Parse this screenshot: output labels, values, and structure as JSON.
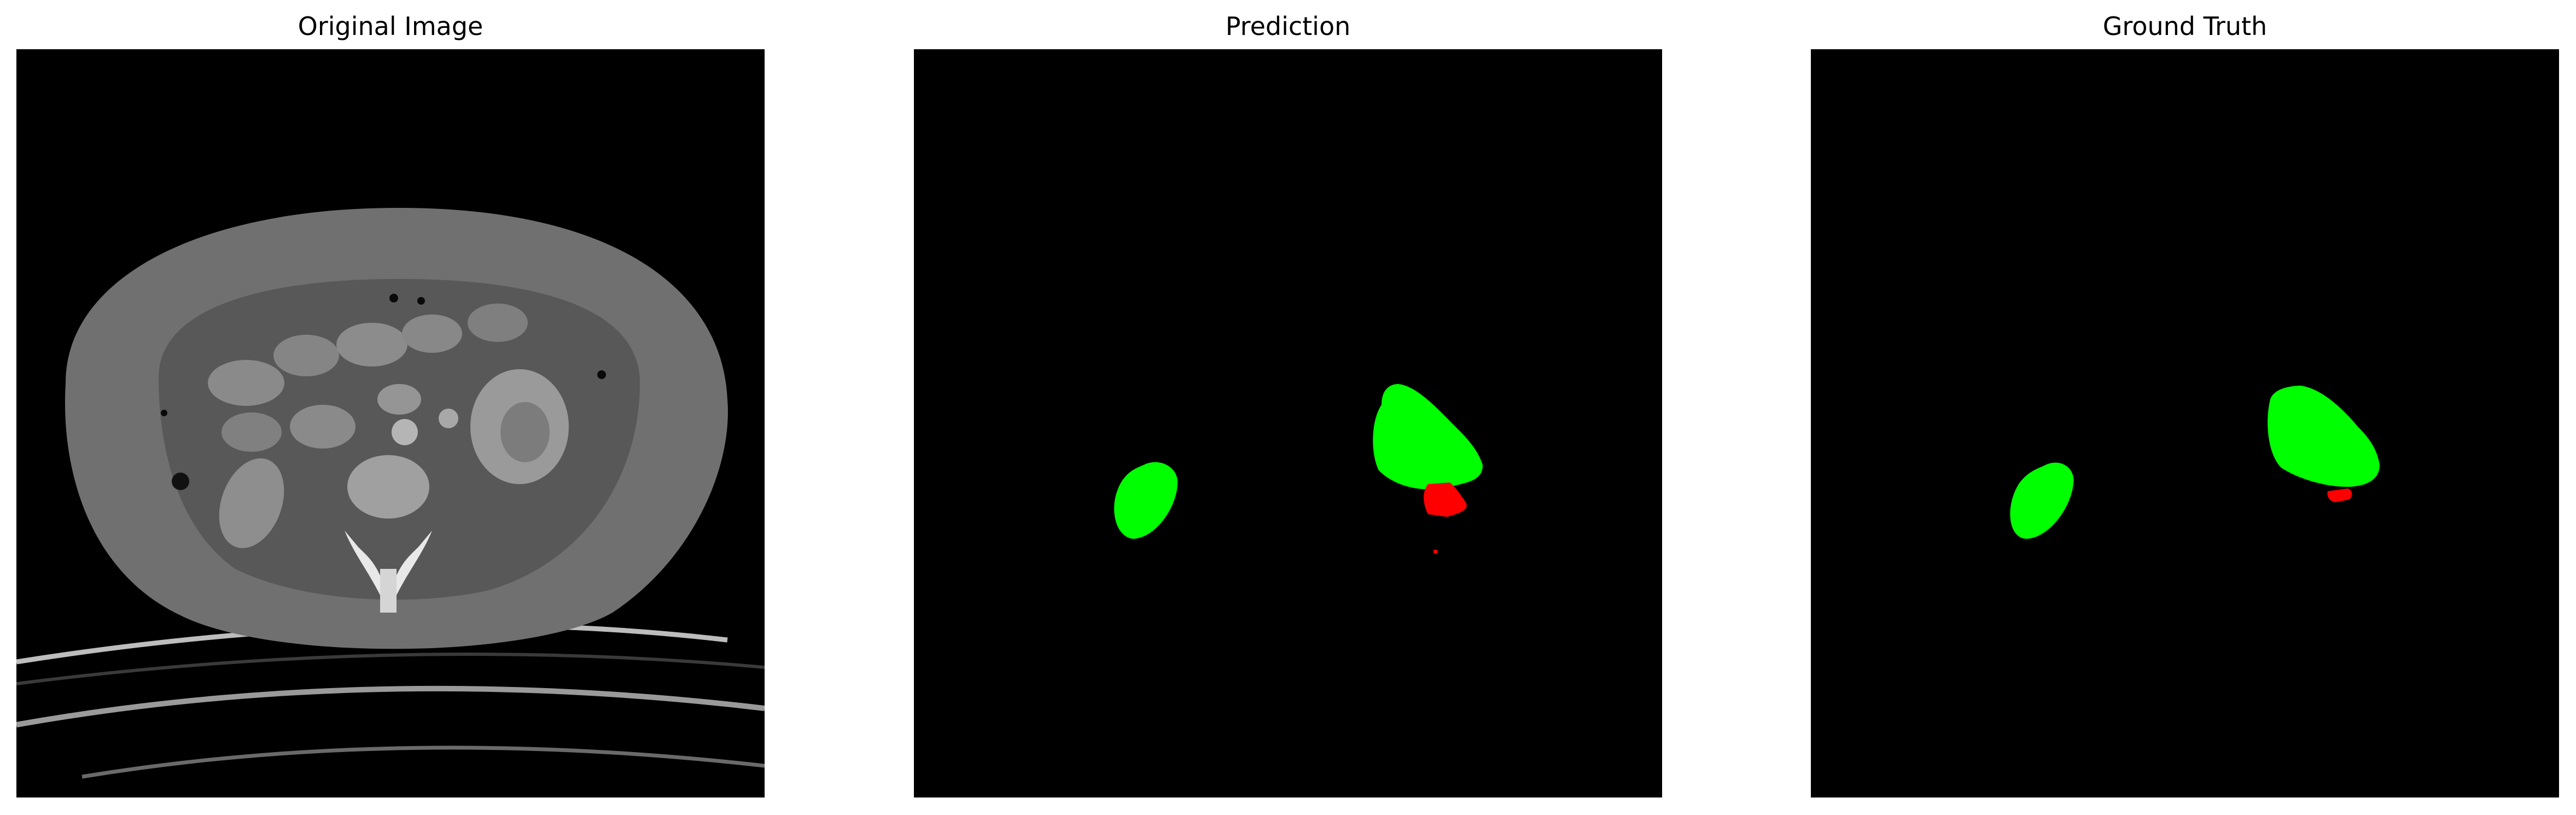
{
  "panels": [
    {
      "title": "Original Image"
    },
    {
      "title": "Prediction"
    },
    {
      "title": "Ground Truth"
    }
  ],
  "colors": {
    "background": "#000000",
    "label_primary": "#00ff00",
    "label_secondary": "#ff0000"
  }
}
